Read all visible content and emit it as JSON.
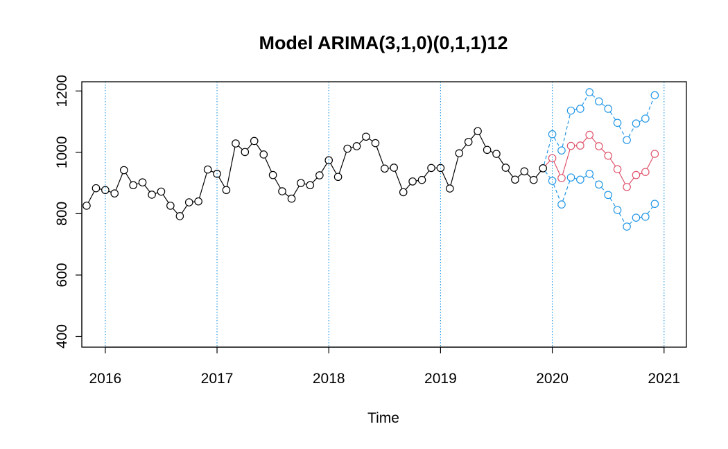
{
  "chart_data": {
    "type": "line",
    "title": "Model ARIMA(3,1,0)(0,1,1)12",
    "xlabel": "Time",
    "ylabel": "",
    "xlim": [
      2015.79,
      2021.2
    ],
    "ylim": [
      365,
      1230
    ],
    "x_ticks": [
      2016,
      2017,
      2018,
      2019,
      2020,
      2021
    ],
    "x_tick_labels": [
      "2016",
      "2017",
      "2018",
      "2019",
      "2020",
      "2021"
    ],
    "y_ticks": [
      400,
      600,
      800,
      1000,
      1200
    ],
    "y_tick_labels": [
      "400",
      "600",
      "800",
      "1000",
      "1200"
    ],
    "vertical_gridlines": [
      2016,
      2017,
      2018,
      2019,
      2020,
      2021
    ],
    "colors": {
      "observed": "#000000",
      "forecast": "#DF536B",
      "interval": "#2297E6",
      "grid": "#2297E6"
    },
    "series": [
      {
        "role": "observed",
        "x": [
          2015.833,
          2015.917,
          2016.0,
          2016.083,
          2016.167,
          2016.25,
          2016.333,
          2016.417,
          2016.5,
          2016.583,
          2016.667,
          2016.75,
          2016.833,
          2016.917,
          2017.0,
          2017.083,
          2017.167,
          2017.25,
          2017.333,
          2017.417,
          2017.5,
          2017.583,
          2017.667,
          2017.75,
          2017.833,
          2017.917,
          2018.0,
          2018.083,
          2018.167,
          2018.25,
          2018.333,
          2018.417,
          2018.5,
          2018.583,
          2018.667,
          2018.75,
          2018.833,
          2018.917,
          2019.0,
          2019.083,
          2019.167,
          2019.25,
          2019.333,
          2019.417,
          2019.5,
          2019.583,
          2019.667,
          2019.75,
          2019.833,
          2019.917
        ],
        "values": [
          826,
          883,
          877,
          866,
          942,
          893,
          902,
          862,
          872,
          826,
          792,
          837,
          840,
          944,
          930,
          877,
          1029,
          1001,
          1037,
          993,
          926,
          873,
          849,
          900,
          893,
          925,
          974,
          920,
          1012,
          1020,
          1051,
          1030,
          947,
          950,
          870,
          905,
          910,
          949,
          949,
          882,
          997,
          1034,
          1069,
          1008,
          995,
          950,
          911,
          938,
          910,
          948
        ]
      },
      {
        "role": "forecast",
        "x": [
          2019.917,
          2020.0,
          2020.083,
          2020.167,
          2020.25,
          2020.333,
          2020.417,
          2020.5,
          2020.583,
          2020.667,
          2020.75,
          2020.833,
          2020.917
        ],
        "values": [
          948,
          981,
          916,
          1021,
          1022,
          1057,
          1020,
          989,
          945,
          887,
          926,
          936,
          995
        ]
      },
      {
        "role": "interval-upper",
        "x": [
          2019.917,
          2020.0,
          2020.083,
          2020.167,
          2020.25,
          2020.333,
          2020.417,
          2020.5,
          2020.583,
          2020.667,
          2020.75,
          2020.833,
          2020.917
        ],
        "values": [
          948,
          1059,
          1006,
          1136,
          1142,
          1196,
          1166,
          1142,
          1096,
          1040,
          1094,
          1110,
          1186
        ]
      },
      {
        "role": "interval-lower",
        "x": [
          2019.917,
          2020.0,
          2020.083,
          2020.167,
          2020.25,
          2020.333,
          2020.417,
          2020.5,
          2020.583,
          2020.667,
          2020.75,
          2020.833,
          2020.917
        ],
        "values": [
          948,
          907,
          830,
          918,
          911,
          930,
          895,
          861,
          812,
          758,
          787,
          790,
          832
        ]
      }
    ]
  }
}
